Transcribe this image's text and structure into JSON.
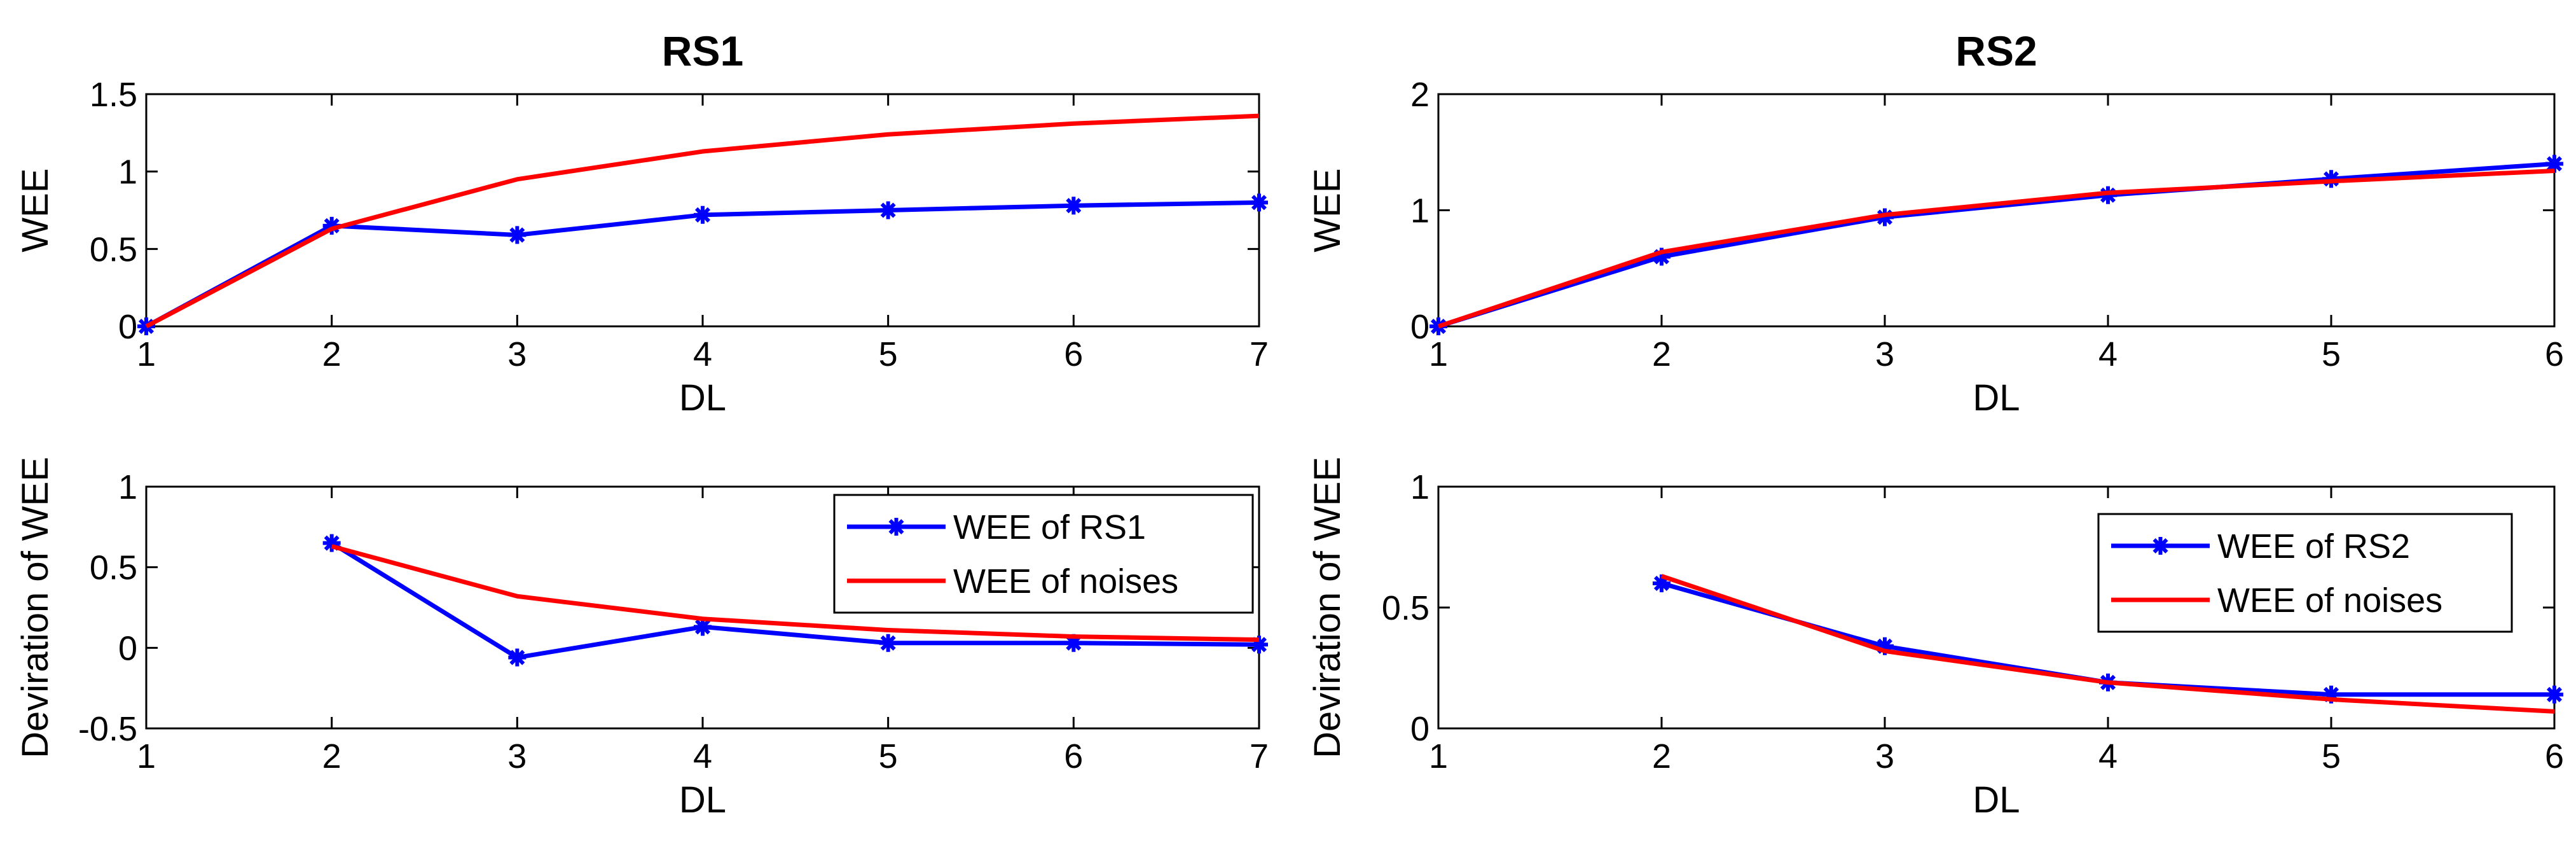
{
  "colors": {
    "background": "#ffffff",
    "axis": "#000000",
    "series_blue": "#0000ff",
    "series_red": "#ff0000"
  },
  "chart_data": [
    {
      "type": "line",
      "title": "RS1",
      "xlabel": "DL",
      "ylabel": "WEE",
      "xlim": [
        1,
        7
      ],
      "ylim": [
        0,
        1.5
      ],
      "xticks": [
        1,
        2,
        3,
        4,
        5,
        6,
        7
      ],
      "xtick_labels": [
        "1",
        "2",
        "3",
        "4",
        "5",
        "6",
        "7"
      ],
      "yticks": [
        0,
        0.5,
        1,
        1.5
      ],
      "ytick_labels": [
        "0",
        "0.5",
        "1",
        "1.5"
      ],
      "series": [
        {
          "name": "WEE of RS1",
          "color": "#0000ff",
          "marker": "star",
          "x": [
            1,
            2,
            3,
            4,
            5,
            6,
            7
          ],
          "y": [
            0,
            0.65,
            0.59,
            0.72,
            0.75,
            0.78,
            0.8
          ]
        },
        {
          "name": "WEE of noises",
          "color": "#ff0000",
          "marker": "none",
          "x": [
            1,
            2,
            3,
            4,
            5,
            6,
            7
          ],
          "y": [
            0,
            0.63,
            0.95,
            1.13,
            1.24,
            1.31,
            1.36
          ]
        }
      ],
      "legend": null
    },
    {
      "type": "line",
      "title": "RS2",
      "xlabel": "DL",
      "ylabel": "WEE",
      "xlim": [
        1,
        6
      ],
      "ylim": [
        0,
        2
      ],
      "xticks": [
        1,
        2,
        3,
        4,
        5,
        6
      ],
      "xtick_labels": [
        "1",
        "2",
        "3",
        "4",
        "5",
        "6"
      ],
      "yticks": [
        0,
        1,
        2
      ],
      "ytick_labels": [
        "0",
        "1",
        "2"
      ],
      "series": [
        {
          "name": "WEE of RS2",
          "color": "#0000ff",
          "marker": "star",
          "x": [
            1,
            2,
            3,
            4,
            5,
            6
          ],
          "y": [
            0,
            0.6,
            0.94,
            1.13,
            1.27,
            1.4
          ]
        },
        {
          "name": "WEE of noises",
          "color": "#ff0000",
          "marker": "none",
          "x": [
            1,
            2,
            3,
            4,
            5,
            6
          ],
          "y": [
            0,
            0.64,
            0.96,
            1.15,
            1.25,
            1.34
          ]
        }
      ],
      "legend": null
    },
    {
      "type": "line",
      "title": "",
      "xlabel": "DL",
      "ylabel": "Deviration of WEE",
      "xlim": [
        1,
        7
      ],
      "ylim": [
        -0.5,
        1
      ],
      "xticks": [
        1,
        2,
        3,
        4,
        5,
        6,
        7
      ],
      "xtick_labels": [
        "1",
        "2",
        "3",
        "4",
        "5",
        "6",
        "7"
      ],
      "yticks": [
        -0.5,
        0,
        0.5,
        1
      ],
      "ytick_labels": [
        "-0.5",
        "0",
        "0.5",
        "1"
      ],
      "series": [
        {
          "name": "WEE of RS1",
          "color": "#0000ff",
          "marker": "star",
          "x": [
            2,
            3,
            4,
            5,
            6,
            7
          ],
          "y": [
            0.65,
            -0.06,
            0.13,
            0.03,
            0.03,
            0.02
          ]
        },
        {
          "name": "WEE of noises",
          "color": "#ff0000",
          "marker": "none",
          "x": [
            2,
            3,
            4,
            5,
            6,
            7
          ],
          "y": [
            0.63,
            0.32,
            0.18,
            0.11,
            0.07,
            0.05
          ]
        }
      ],
      "legend": {
        "location": "top-right",
        "entries": [
          "WEE of RS1",
          "WEE of noises"
        ]
      }
    },
    {
      "type": "line",
      "title": "",
      "xlabel": "DL",
      "ylabel": "Deviration of WEE",
      "xlim": [
        1,
        6
      ],
      "ylim": [
        0,
        1
      ],
      "xticks": [
        1,
        2,
        3,
        4,
        5,
        6
      ],
      "xtick_labels": [
        "1",
        "2",
        "3",
        "4",
        "5",
        "6"
      ],
      "yticks": [
        0,
        0.5,
        1
      ],
      "ytick_labels": [
        "0",
        "0.5",
        "1"
      ],
      "series": [
        {
          "name": "WEE of RS2",
          "color": "#0000ff",
          "marker": "star",
          "x": [
            2,
            3,
            4,
            5,
            6
          ],
          "y": [
            0.6,
            0.34,
            0.19,
            0.14,
            0.14
          ]
        },
        {
          "name": "WEE of noises",
          "color": "#ff0000",
          "marker": "none",
          "x": [
            2,
            3,
            4,
            5,
            6
          ],
          "y": [
            0.63,
            0.32,
            0.19,
            0.12,
            0.07
          ]
        }
      ],
      "legend": {
        "location": "top-right",
        "entries": [
          "WEE of RS2",
          "WEE of noises"
        ]
      }
    }
  ]
}
